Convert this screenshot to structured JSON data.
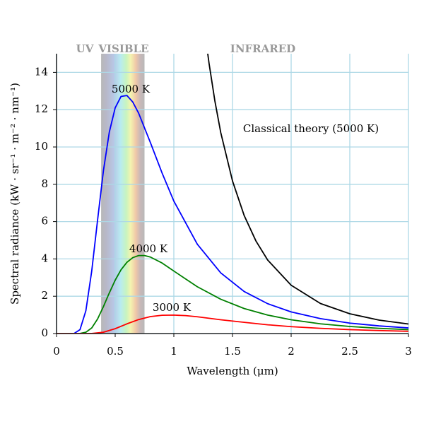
{
  "chart_data": {
    "type": "line",
    "xlabel": "Wavelength (μm)",
    "ylabel": "Spectral radiance (kW · sr⁻¹ · m⁻² · nm⁻¹)",
    "xlim": [
      0,
      3
    ],
    "ylim": [
      0,
      15
    ],
    "xticks": [
      0,
      0.5,
      1,
      1.5,
      2,
      2.5,
      3
    ],
    "yticks": [
      0,
      2,
      4,
      6,
      8,
      10,
      12,
      14
    ],
    "grid": true,
    "annotations": [
      "UV",
      "VISIBLE",
      "INFRARED"
    ],
    "visible_range": [
      0.38,
      0.75
    ],
    "series": [
      {
        "name": "5000 K",
        "color": "#0000ff",
        "x": [
          0,
          0.1,
          0.15,
          0.2,
          0.25,
          0.3,
          0.35,
          0.4,
          0.45,
          0.5,
          0.55,
          0.6,
          0.65,
          0.7,
          0.8,
          0.9,
          1.0,
          1.2,
          1.4,
          1.6,
          1.8,
          2.0,
          2.25,
          2.5,
          2.75,
          3.0
        ],
        "values": [
          0,
          0,
          0.007,
          0.21,
          1.22,
          3.35,
          6.09,
          8.74,
          10.8,
          12.1,
          12.71,
          12.76,
          12.41,
          11.81,
          10.24,
          8.6,
          7.1,
          4.79,
          3.25,
          2.25,
          1.6,
          1.16,
          0.8,
          0.56,
          0.41,
          0.3
        ]
      },
      {
        "name": "4000 K",
        "color": "#008000",
        "x": [
          0,
          0.15,
          0.2,
          0.25,
          0.3,
          0.35,
          0.4,
          0.45,
          0.5,
          0.55,
          0.6,
          0.65,
          0.7,
          0.75,
          0.8,
          0.9,
          1.0,
          1.2,
          1.4,
          1.6,
          1.8,
          2.0,
          2.25,
          2.5,
          2.75,
          3.0
        ],
        "values": [
          0,
          0,
          0.006,
          0.069,
          0.3,
          0.78,
          1.45,
          2.18,
          2.86,
          3.42,
          3.82,
          4.07,
          4.18,
          4.18,
          4.1,
          3.78,
          3.35,
          2.51,
          1.84,
          1.34,
          0.99,
          0.74,
          0.52,
          0.38,
          0.28,
          0.21
        ]
      },
      {
        "name": "3000 K",
        "color": "#ff0000",
        "x": [
          0,
          0.25,
          0.3,
          0.4,
          0.5,
          0.6,
          0.7,
          0.8,
          0.9,
          1.0,
          1.1,
          1.2,
          1.4,
          1.6,
          1.8,
          2.0,
          2.25,
          2.5,
          2.75,
          3.0
        ],
        "values": [
          0,
          0,
          0.006,
          0.072,
          0.26,
          0.52,
          0.75,
          0.91,
          0.98,
          0.99,
          0.96,
          0.9,
          0.74,
          0.6,
          0.47,
          0.37,
          0.28,
          0.21,
          0.16,
          0.12
        ]
      },
      {
        "name": "Classical theory (5000 K)",
        "color": "#000000",
        "x": [
          1.28,
          1.3,
          1.35,
          1.4,
          1.5,
          1.6,
          1.7,
          1.8,
          2.0,
          2.25,
          2.5,
          2.75,
          3.0
        ],
        "values": [
          15.42,
          14.49,
          12.46,
          10.77,
          8.18,
          6.32,
          4.96,
          3.94,
          2.59,
          1.61,
          1.06,
          0.72,
          0.51
        ]
      }
    ]
  }
}
